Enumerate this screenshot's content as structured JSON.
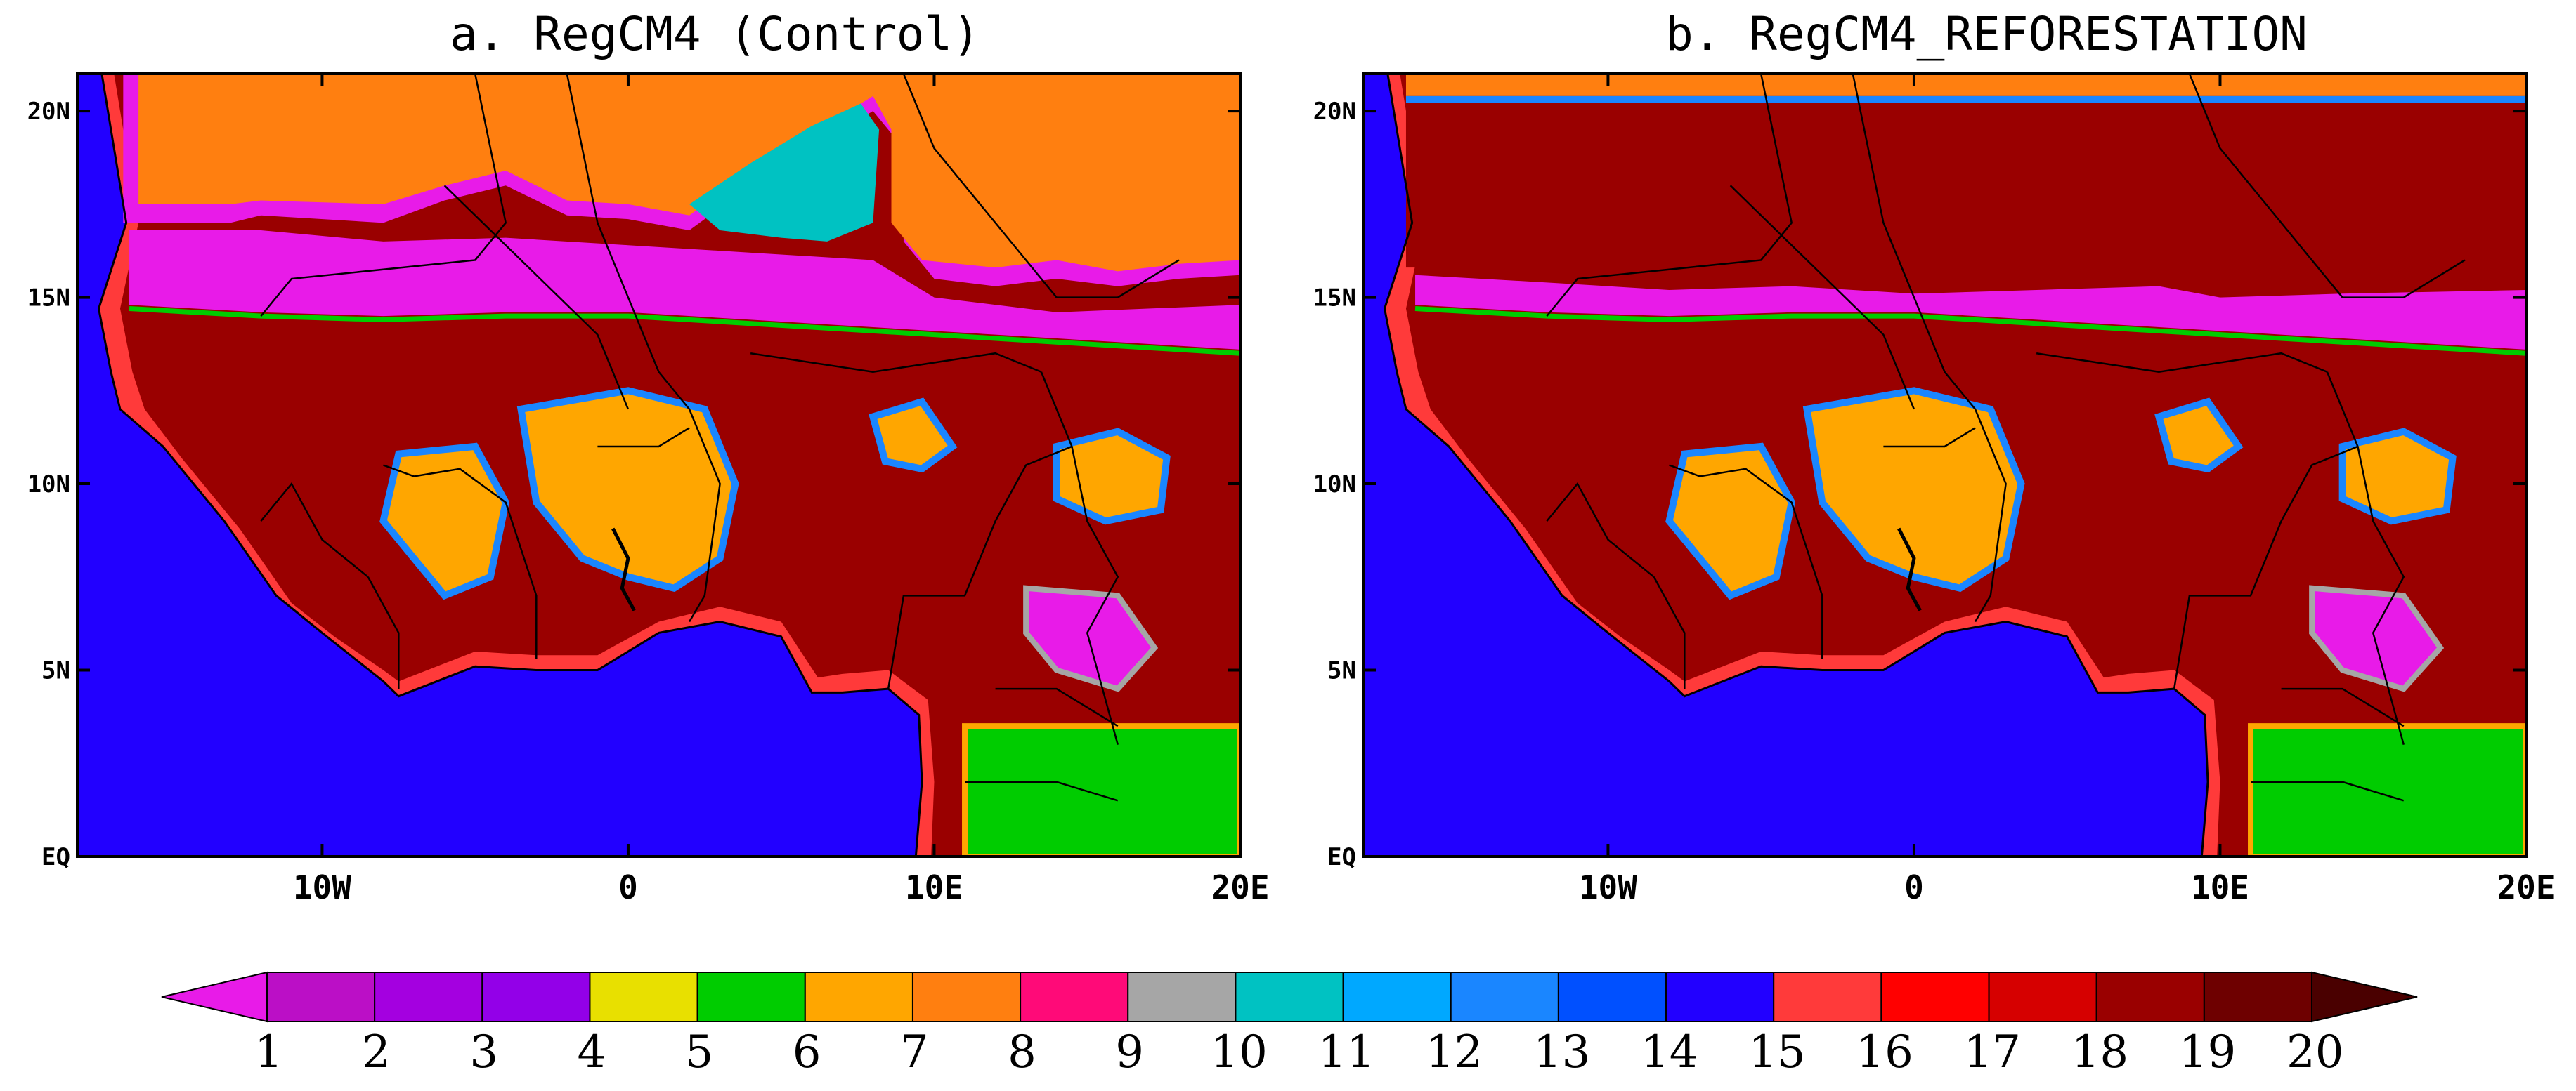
{
  "panels": [
    {
      "id": "a",
      "title": "a. RegCM4 (Control)",
      "north_band": "none"
    },
    {
      "id": "b",
      "title": "b. RegCM4_REFORESTATION",
      "north_band": "forest"
    }
  ],
  "axes": {
    "lat_labels": [
      "20N",
      "15N",
      "10N",
      "5N",
      "EQ"
    ],
    "lat_values": [
      20,
      15,
      10,
      5,
      0
    ],
    "lon_labels": [
      "10W",
      "0",
      "10E",
      "20E"
    ],
    "lon_values": [
      -10,
      0,
      10,
      20
    ],
    "lon_range": [
      -18,
      20
    ],
    "lat_range": [
      0,
      21
    ]
  },
  "colorbar": {
    "labels": [
      "1",
      "2",
      "3",
      "4",
      "5",
      "6",
      "7",
      "8",
      "9",
      "10",
      "11",
      "12",
      "13",
      "14",
      "15",
      "16",
      "17",
      "18",
      "19",
      "20"
    ],
    "colors": [
      "#e81be8",
      "#bb0fc6",
      "#a400e0",
      "#9300e8",
      "#e8e000",
      "#00cc00",
      "#ffa600",
      "#ff7f10",
      "#ff0a78",
      "#a6a6a6",
      "#00c2c2",
      "#00a8ff",
      "#1a86ff",
      "#0050ff",
      "#2200ff",
      "#ff3a3a",
      "#ff0000",
      "#d60000",
      "#9a0000",
      "#6e0000",
      "#4a0000"
    ]
  },
  "legend_colors": {
    "ocean": "#2200ff",
    "desert": "#ff7f10",
    "forest": "#9a0000",
    "savanna": "#ffa600",
    "shrub": "#e81be8",
    "grass": "#00cc00",
    "semidesert": "#00c2c2",
    "coast": "#ff3a3a"
  }
}
